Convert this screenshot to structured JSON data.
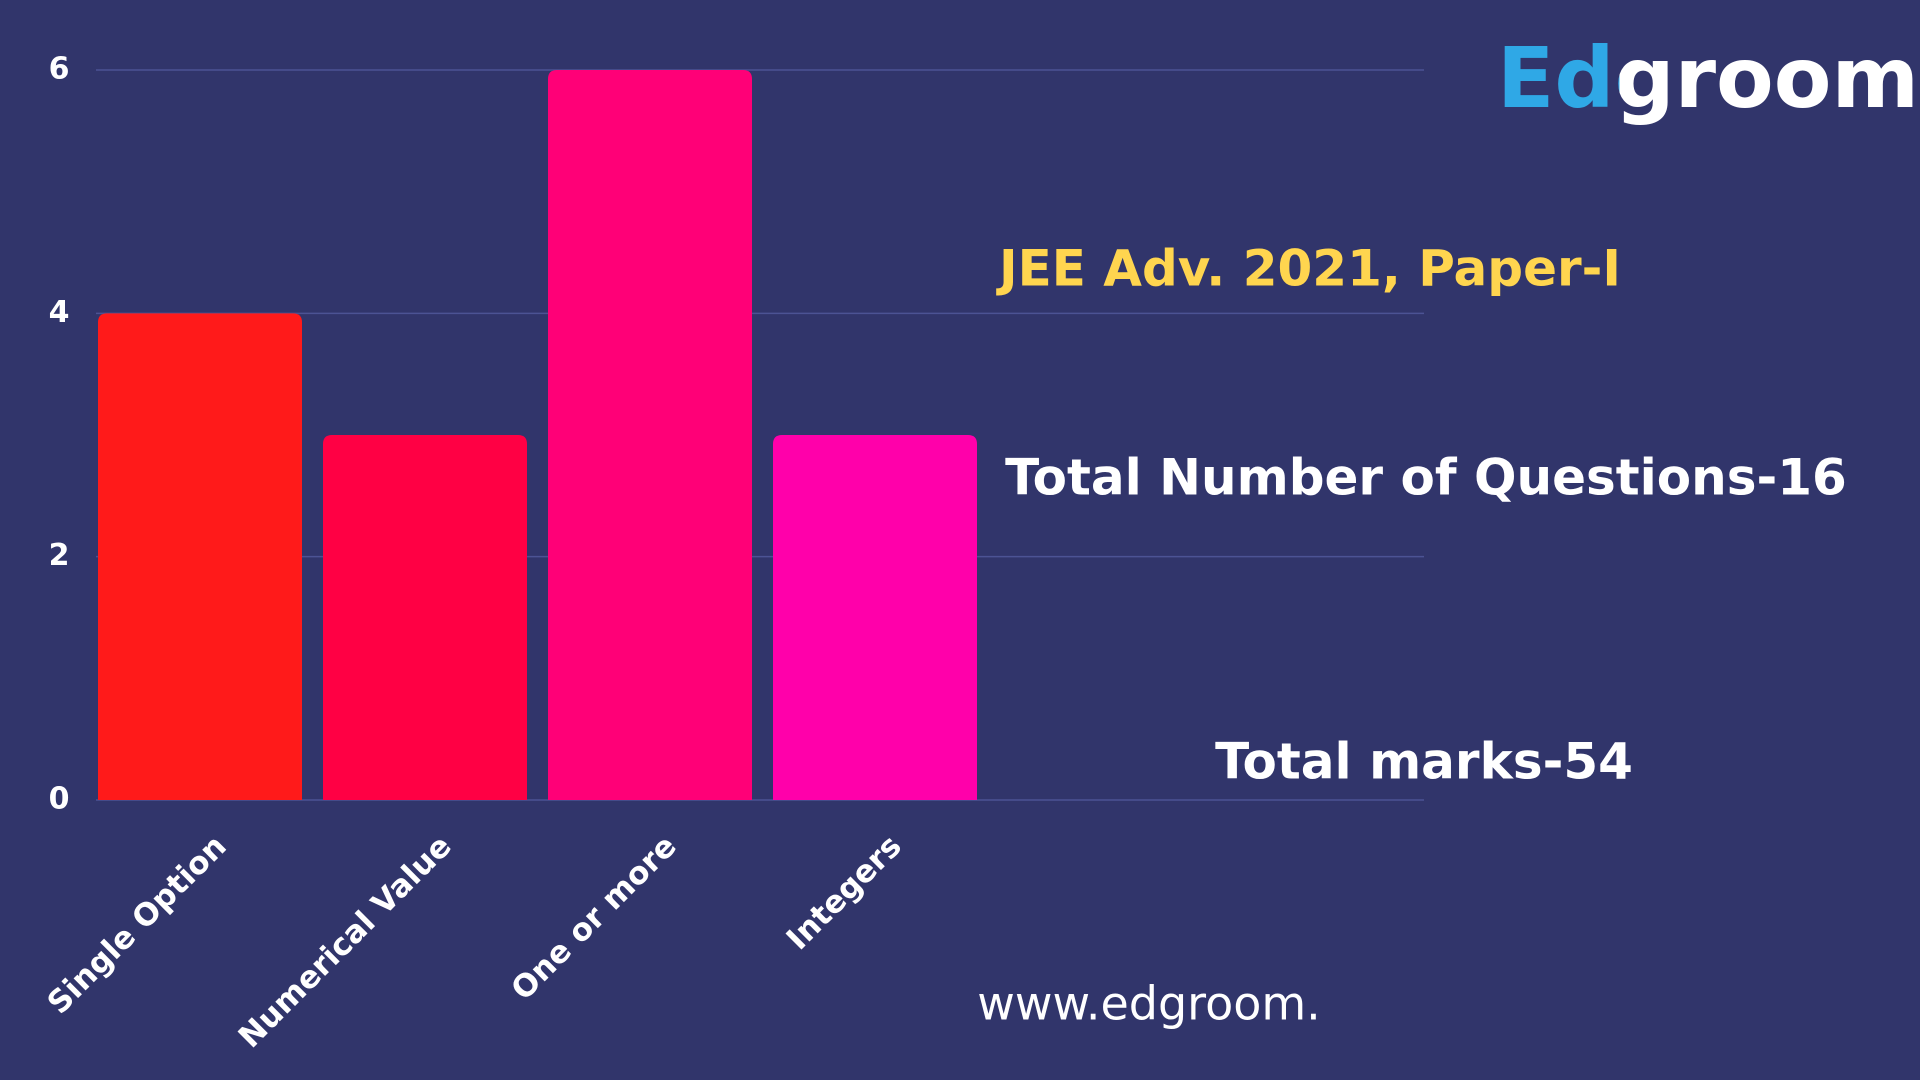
{
  "chart_data": {
    "type": "bar",
    "categories": [
      "Single Option",
      "Numerical Value",
      "One or more",
      "Integers"
    ],
    "values": [
      4,
      3,
      6,
      3
    ],
    "colors": [
      "#ff1a1a",
      "#ff0044",
      "#ff0077",
      "#ff00aa"
    ],
    "ylim": [
      0,
      6
    ],
    "yticks": [
      0,
      2,
      4,
      6
    ],
    "grid": true,
    "annotations": [
      "JEE Adv. 2021, Paper-I",
      "Total Number of Questions-16",
      "Total marks-54",
      "www.edgroom."
    ],
    "logo": "Edgroom"
  }
}
